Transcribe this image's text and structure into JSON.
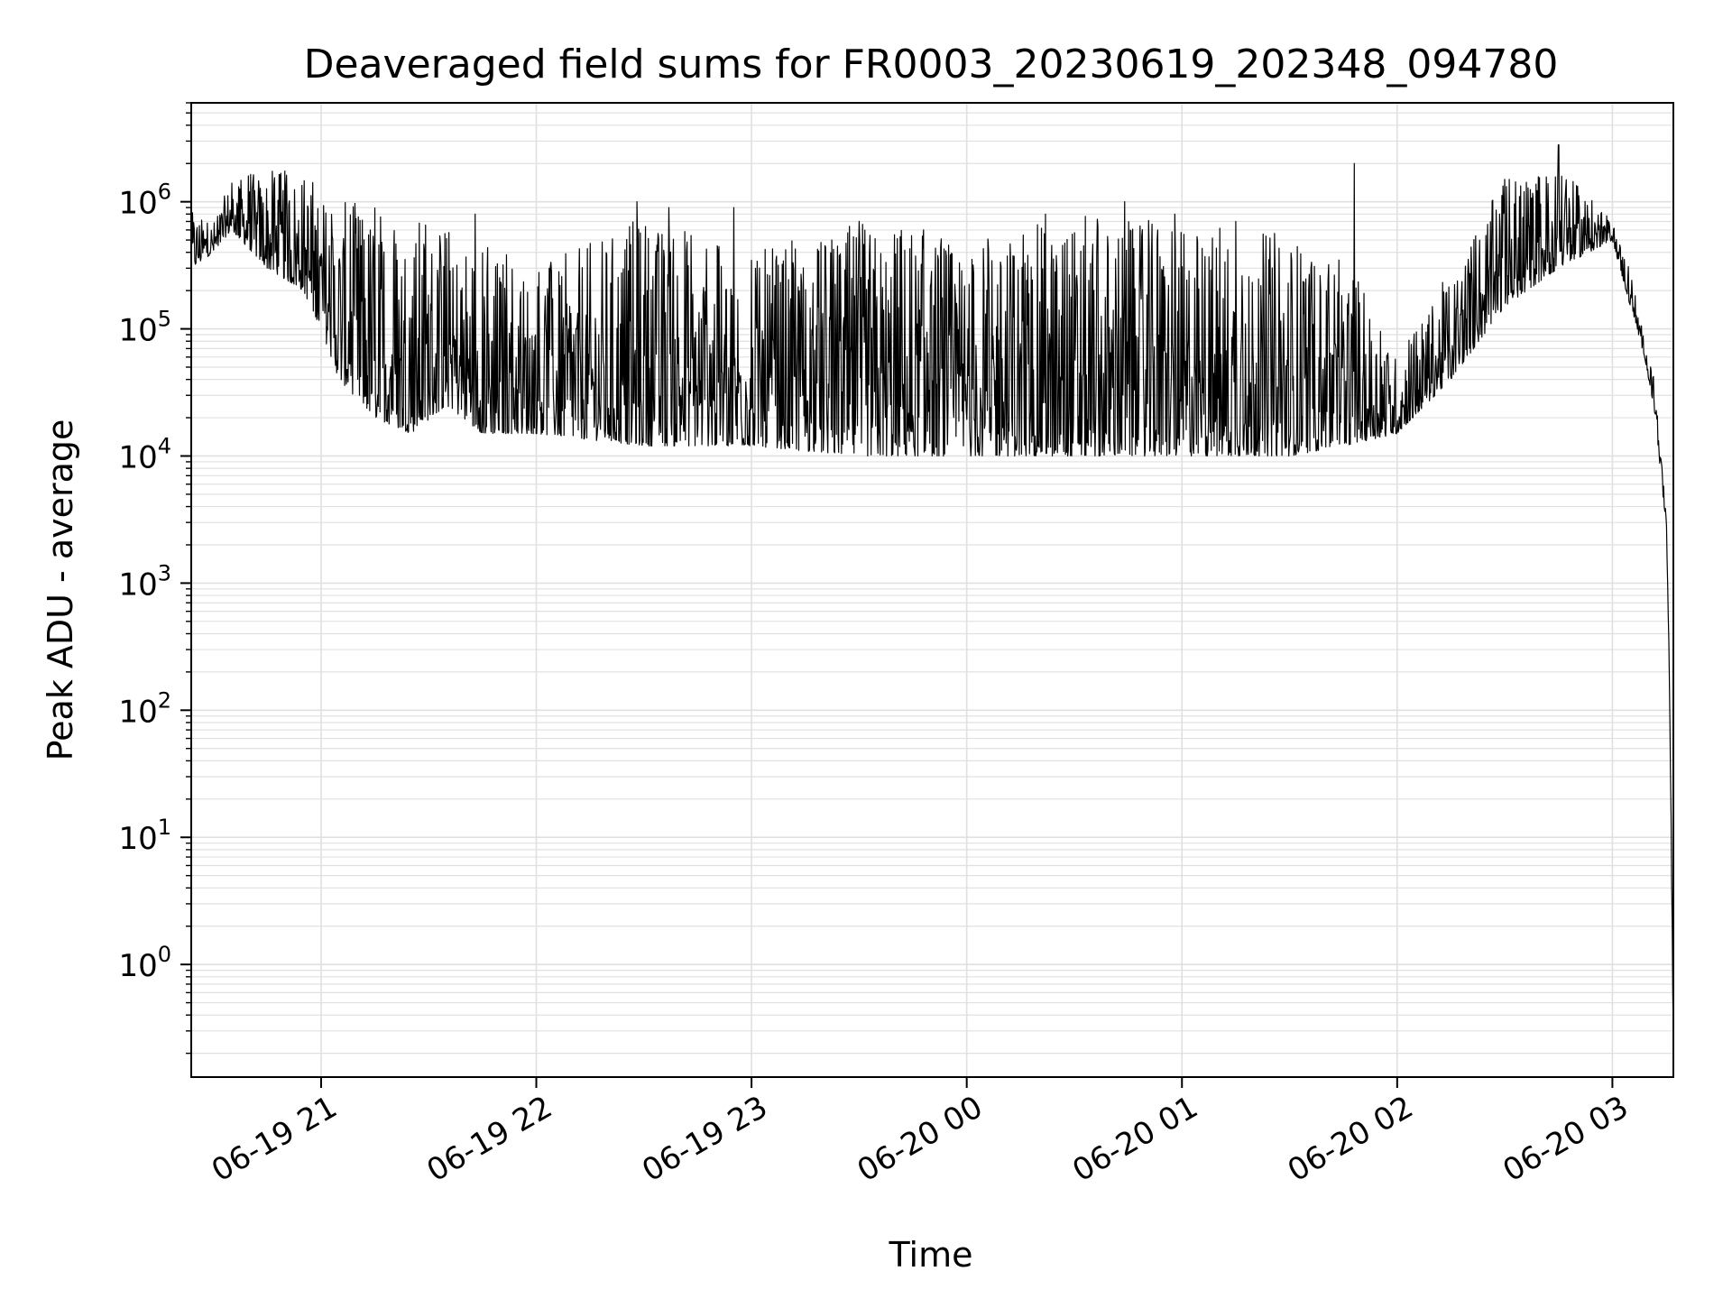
{
  "chart_data": {
    "type": "line",
    "title": "Deaveraged field sums for FR0003_20230619_202348_094780",
    "xlabel": "Time",
    "ylabel": "Peak ADU - average",
    "yscale": "log",
    "ylim": [
      0.13,
      6000000
    ],
    "xlim": [
      "06-19 20:23:48",
      "06-20 03:17"
    ],
    "grid": true,
    "x_ticks": [
      {
        "label": "06-19 21",
        "value": "06-19 21:00"
      },
      {
        "label": "06-19 22",
        "value": "06-19 22:00"
      },
      {
        "label": "06-19 23",
        "value": "06-19 23:00"
      },
      {
        "label": "06-20 00",
        "value": "06-20 00:00"
      },
      {
        "label": "06-20 01",
        "value": "06-20 01:00"
      },
      {
        "label": "06-20 02",
        "value": "06-20 02:00"
      },
      {
        "label": "06-20 03",
        "value": "06-20 03:00"
      }
    ],
    "y_ticks": [
      {
        "base": "10",
        "exp": "0",
        "value": 1
      },
      {
        "base": "10",
        "exp": "1",
        "value": 10
      },
      {
        "base": "10",
        "exp": "2",
        "value": 100
      },
      {
        "base": "10",
        "exp": "3",
        "value": 1000
      },
      {
        "base": "10",
        "exp": "4",
        "value": 10000
      },
      {
        "base": "10",
        "exp": "5",
        "value": 100000
      },
      {
        "base": "10",
        "exp": "6",
        "value": 1000000
      }
    ],
    "line_color": "#000000",
    "grid_color": "#e0e0e0",
    "series": [
      {
        "envelope": [
          {
            "t": "06-19 20:24",
            "low": 300000,
            "high": 900000
          },
          {
            "t": "06-19 20:30",
            "low": 400000,
            "high": 700000
          },
          {
            "t": "06-19 20:35",
            "low": 600000,
            "high": 1500000
          },
          {
            "t": "06-19 20:45",
            "low": 300000,
            "high": 1800000
          },
          {
            "t": "06-19 20:55",
            "low": 200000,
            "high": 1800000
          },
          {
            "t": "06-19 21:00",
            "low": 100000,
            "high": 1200000
          },
          {
            "t": "06-19 21:05",
            "low": 40000,
            "high": 1000000
          },
          {
            "t": "06-19 21:15",
            "low": 20000,
            "high": 1000000
          },
          {
            "t": "06-19 21:25",
            "low": 15000,
            "high": 900000
          },
          {
            "t": "06-19 21:35",
            "low": 25000,
            "high": 600000
          },
          {
            "t": "06-19 21:45",
            "low": 15000,
            "high": 500000
          },
          {
            "t": "06-19 22:00",
            "low": 15000,
            "high": 300000
          },
          {
            "t": "06-19 22:30",
            "low": 12000,
            "high": 800000
          },
          {
            "t": "06-19 23:00",
            "low": 12000,
            "high": 400000
          },
          {
            "t": "06-19 23:30",
            "low": 10000,
            "high": 700000
          },
          {
            "t": "06-20 00:00",
            "low": 10000,
            "high": 500000
          },
          {
            "t": "06-20 00:30",
            "low": 10000,
            "high": 800000
          },
          {
            "t": "06-20 01:00",
            "low": 10000,
            "high": 700000
          },
          {
            "t": "06-20 01:30",
            "low": 10000,
            "high": 600000
          },
          {
            "t": "06-20 01:45",
            "low": 12000,
            "high": 400000
          },
          {
            "t": "06-20 02:00",
            "low": 15000,
            "high": 60000
          },
          {
            "t": "06-20 02:15",
            "low": 40000,
            "high": 300000
          },
          {
            "t": "06-20 02:30",
            "low": 150000,
            "high": 1500000
          },
          {
            "t": "06-20 02:45",
            "low": 300000,
            "high": 2000000
          },
          {
            "t": "06-20 03:00",
            "low": 500000,
            "high": 700000
          },
          {
            "t": "06-20 03:05",
            "low": 150000,
            "high": 300000
          },
          {
            "t": "06-20 03:09",
            "low": 60000,
            "high": 80000
          },
          {
            "t": "06-20 03:12",
            "low": 20000,
            "high": 40000
          },
          {
            "t": "06-20 03:14",
            "low": 5000,
            "high": 7000
          },
          {
            "t": "06-20 03:15",
            "low": 3000,
            "high": 4000
          },
          {
            "t": "06-20 03:16",
            "low": 100,
            "high": 150
          },
          {
            "t": "06-20 03:17",
            "low": 0.2,
            "high": 0.3
          }
        ],
        "spikes": [
          {
            "t": "06-19 21:43",
            "value": 800000
          },
          {
            "t": "06-19 22:28",
            "value": 1000000
          },
          {
            "t": "06-19 22:37",
            "value": 900000
          },
          {
            "t": "06-19 22:55",
            "value": 900000
          },
          {
            "t": "06-19 23:30",
            "value": 700000
          },
          {
            "t": "06-19 23:48",
            "value": 600000
          },
          {
            "t": "06-20 00:22",
            "value": 800000
          },
          {
            "t": "06-20 00:44",
            "value": 1000000
          },
          {
            "t": "06-20 00:58",
            "value": 800000
          },
          {
            "t": "06-20 01:15",
            "value": 700000
          },
          {
            "t": "06-20 01:48",
            "value": 2000000
          },
          {
            "t": "06-20 02:30",
            "value": 1500000
          },
          {
            "t": "06-20 02:45",
            "value": 2800000
          }
        ]
      }
    ]
  }
}
